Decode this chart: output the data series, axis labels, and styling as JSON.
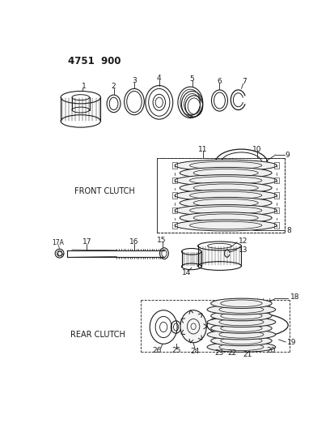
{
  "title": "4751  900",
  "front_clutch_label": "FRONT CLUTCH",
  "rear_clutch_label": "REAR CLUTCH",
  "bg_color": "#ffffff",
  "lc": "#1a1a1a",
  "fig_w": 4.08,
  "fig_h": 5.33,
  "dpi": 100
}
